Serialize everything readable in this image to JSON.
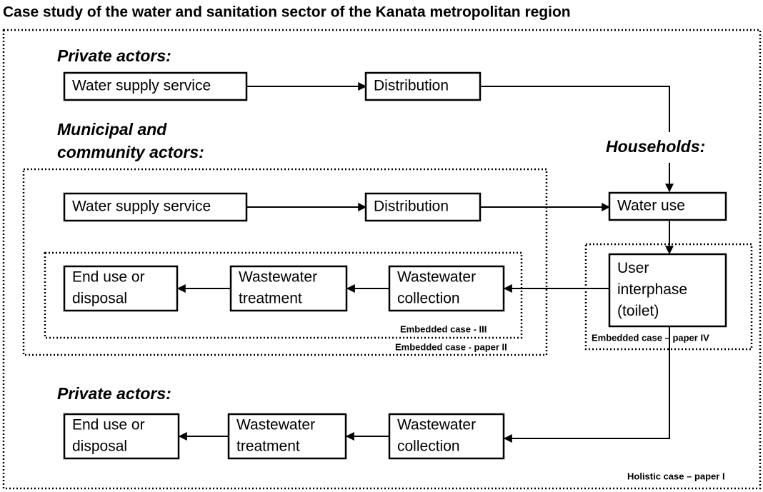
{
  "title": "Case study of the water and sanitation sector of the Kanata metropolitan region",
  "labels": [
    "Private actors:",
    "Municipal and",
    "community actors:",
    "Households:",
    "Private actors:"
  ],
  "nodes": [
    {
      "lines": [
        "Water supply service"
      ]
    },
    {
      "lines": [
        "Distribution"
      ]
    },
    {
      "lines": [
        "Water supply service"
      ]
    },
    {
      "lines": [
        "Distribution"
      ]
    },
    {
      "lines": [
        "Water use"
      ]
    },
    {
      "lines": [
        "User",
        "interphase",
        "(toilet)"
      ]
    },
    {
      "lines": [
        "End use or",
        "disposal"
      ]
    },
    {
      "lines": [
        "Wastewater",
        "treatment"
      ]
    },
    {
      "lines": [
        "Wastewater",
        "collection"
      ]
    },
    {
      "lines": [
        "End use or",
        "disposal"
      ]
    },
    {
      "lines": [
        "Wastewater",
        "treatment"
      ]
    },
    {
      "lines": [
        "Wastewater",
        "collection"
      ]
    }
  ],
  "case_labels": [
    "Embedded case -  III",
    "Embedded case - paper II",
    "Embedded case – paper IV",
    "Holistic case – paper I"
  ]
}
